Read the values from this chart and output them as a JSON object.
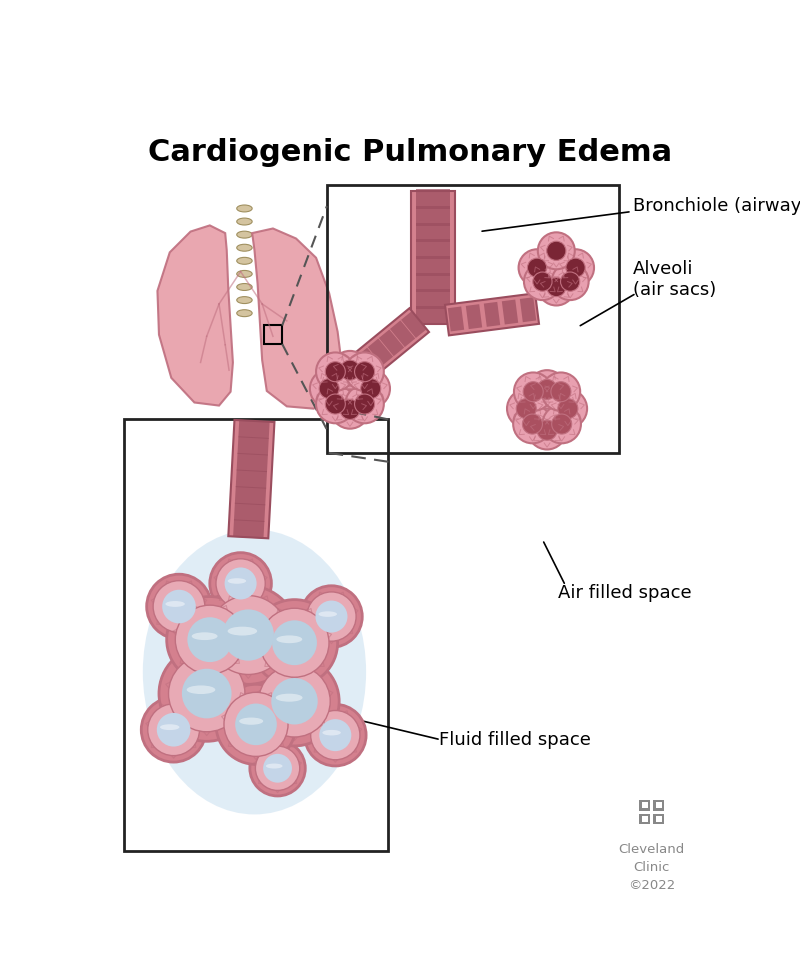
{
  "title": "Cardiogenic Pulmonary Edema",
  "title_fontsize": 22,
  "title_fontweight": "bold",
  "bg_color": "#ffffff",
  "text_color": "#000000",
  "label_bronchiole": "Bronchiole (airway)",
  "label_alveoli": "Alveoli\n(air sacs)",
  "label_air_filled": "Air filled space",
  "label_fluid_filled": "Fluid filled space",
  "label_clinic": "Cleveland\nClinic\n©2022",
  "lung_color": "#e8a0aa",
  "lung_dark": "#c07080",
  "bronchiole_color": "#d4818e",
  "bronchiole_stripe": "#9a4d5e",
  "alveoli_color": "#e8a0b0",
  "alveoli_edge": "#c07080",
  "air_space_color": "#7a2535",
  "box_color": "#222222",
  "dashed_color": "#555555",
  "gray_color": "#888888",
  "fluid_outer": "#d4808e",
  "fluid_ring": "#e8aab5",
  "fluid_blue": "#b8cfe0",
  "fluid_inner": "#ccdaec",
  "trachea_color": "#d4c4a0",
  "trachea_edge": "#a09060"
}
